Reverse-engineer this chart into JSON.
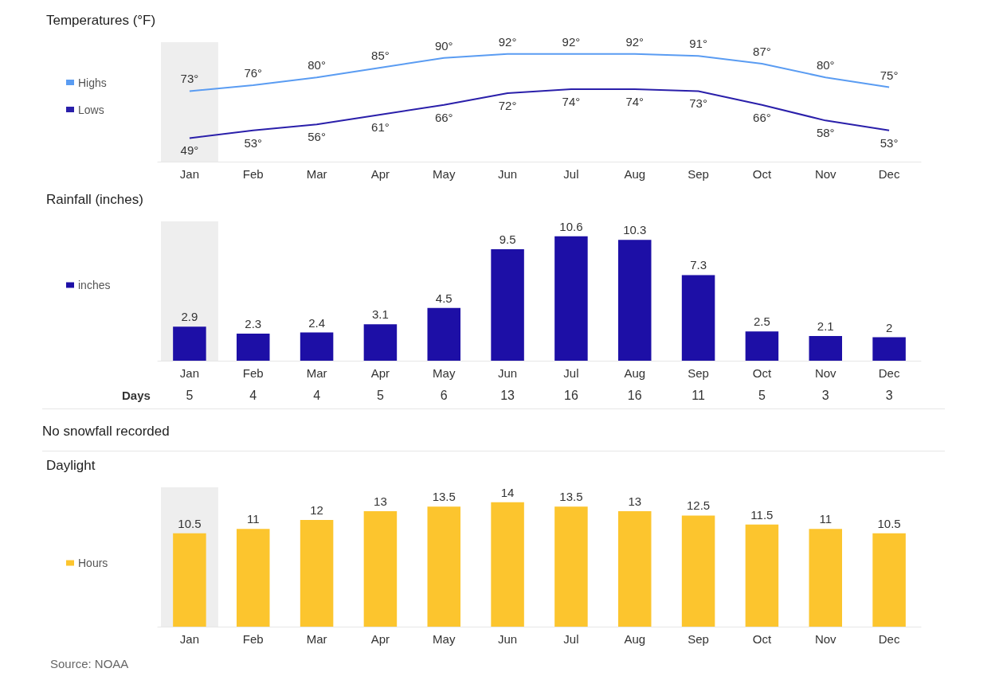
{
  "chart_data": [
    {
      "type": "line",
      "title": "Temperatures (°F)",
      "categories": [
        "Jan",
        "Feb",
        "Mar",
        "Apr",
        "May",
        "Jun",
        "Jul",
        "Aug",
        "Sep",
        "Oct",
        "Nov",
        "Dec"
      ],
      "legend": "left",
      "bands": [
        {
          "axis": "x",
          "from": "Jan",
          "to": "Jan",
          "color": "#eeeeee"
        }
      ],
      "series": [
        {
          "name": "Highs",
          "color": "#5a9cf2",
          "values": [
            73,
            76,
            80,
            85,
            90,
            92,
            92,
            92,
            91,
            87,
            80,
            75
          ],
          "value_labels": [
            "73°",
            "76°",
            "80°",
            "85°",
            "90°",
            "92°",
            "92°",
            "92°",
            "91°",
            "87°",
            "80°",
            "75°"
          ]
        },
        {
          "name": "Lows",
          "color": "#2a1faa",
          "values": [
            49,
            53,
            56,
            61,
            66,
            72,
            74,
            74,
            73,
            66,
            58,
            53
          ],
          "value_labels": [
            "49°",
            "53°",
            "56°",
            "61°",
            "66°",
            "72°",
            "74°",
            "74°",
            "73°",
            "66°",
            "58°",
            "53°"
          ]
        }
      ]
    },
    {
      "type": "bar",
      "title": "Rainfall (inches)",
      "categories": [
        "Jan",
        "Feb",
        "Mar",
        "Apr",
        "May",
        "Jun",
        "Jul",
        "Aug",
        "Sep",
        "Oct",
        "Nov",
        "Dec"
      ],
      "legend": "left",
      "data_labels": true,
      "bands": [
        {
          "axis": "x",
          "from": "Jan",
          "to": "Jan",
          "color": "#eeeeee"
        }
      ],
      "series": [
        {
          "name": "inches",
          "color": "#1d0fa6",
          "values": [
            2.9,
            2.3,
            2.4,
            3.1,
            4.5,
            9.5,
            10.6,
            10.3,
            7.3,
            2.5,
            2.1,
            2
          ]
        }
      ]
    },
    {
      "type": "other",
      "title": "Days",
      "data_labels": true,
      "values": [
        5,
        4,
        4,
        5,
        6,
        13,
        16,
        16,
        11,
        5,
        3,
        3
      ],
      "annotations": [
        "No snowfall recorded"
      ]
    },
    {
      "type": "bar",
      "title": "Daylight",
      "categories": [
        "Jan",
        "Feb",
        "Mar",
        "Apr",
        "May",
        "Jun",
        "Jul",
        "Aug",
        "Sep",
        "Oct",
        "Nov",
        "Dec"
      ],
      "legend": "left",
      "data_labels": true,
      "bands": [
        {
          "axis": "x",
          "from": "Jan",
          "to": "Jan",
          "color": "#eeeeee"
        }
      ],
      "annotations": [
        "Source: NOAA"
      ],
      "series": [
        {
          "name": "Hours",
          "color": "#fcc52e",
          "values": [
            10.5,
            11,
            12,
            13,
            13.5,
            14,
            13.5,
            13,
            12.5,
            11.5,
            11,
            10.5
          ]
        }
      ]
    }
  ]
}
